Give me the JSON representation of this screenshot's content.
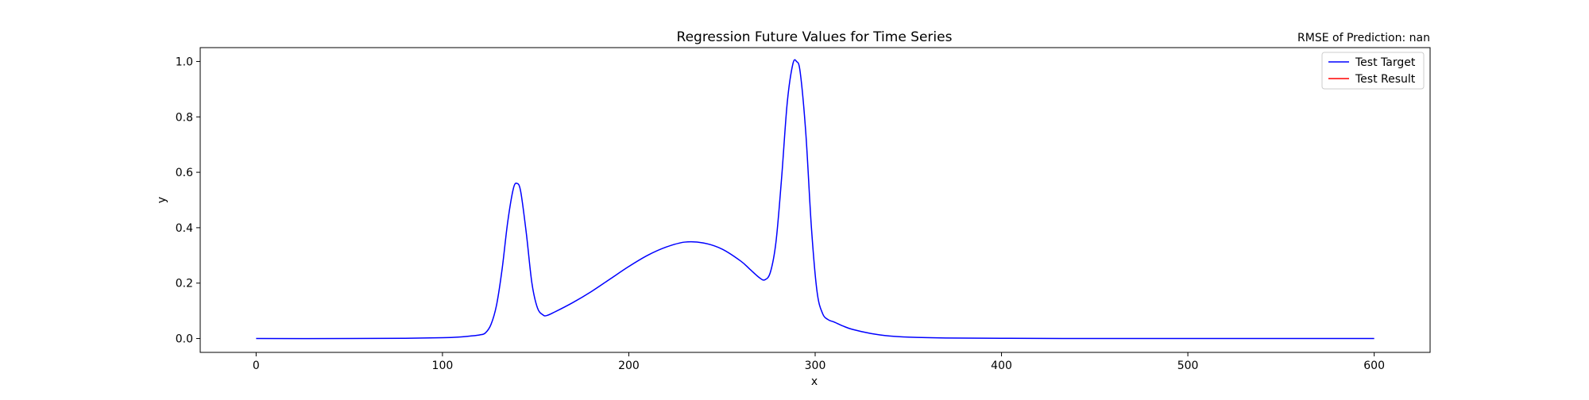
{
  "chart_data": {
    "type": "line",
    "title": "Regression Future Values for Time Series",
    "subtitle": "RMSE of Prediction: nan",
    "xlabel": "x",
    "ylabel": "y",
    "xlim": [
      -30,
      630
    ],
    "ylim": [
      -0.05,
      1.05
    ],
    "xticks": [
      0,
      100,
      200,
      300,
      400,
      500,
      600
    ],
    "yticks": [
      0.0,
      0.2,
      0.4,
      0.6,
      0.8,
      1.0
    ],
    "xtick_labels": [
      "0",
      "100",
      "200",
      "300",
      "400",
      "500",
      "600"
    ],
    "ytick_labels": [
      "0.0",
      "0.2",
      "0.4",
      "0.6",
      "0.8",
      "1.0"
    ],
    "grid": false,
    "legend_position": "top-right",
    "series": [
      {
        "name": "Test Target",
        "color": "#0000ff",
        "x": [
          0,
          50,
          80,
          100,
          110,
          115,
          120,
          123,
          126,
          129,
          132,
          135,
          138,
          140,
          142,
          145,
          148,
          151,
          154,
          156,
          160,
          170,
          180,
          190,
          200,
          210,
          220,
          230,
          240,
          250,
          260,
          265,
          270,
          273,
          276,
          279,
          282,
          285,
          288,
          290,
          292,
          295,
          298,
          301,
          304,
          307,
          310,
          315,
          320,
          330,
          340,
          350,
          370,
          400,
          450,
          500,
          550,
          600
        ],
        "values": [
          0.0,
          0.0,
          0.001,
          0.003,
          0.006,
          0.009,
          0.013,
          0.02,
          0.05,
          0.12,
          0.25,
          0.42,
          0.54,
          0.56,
          0.53,
          0.38,
          0.2,
          0.11,
          0.085,
          0.083,
          0.095,
          0.13,
          0.17,
          0.215,
          0.26,
          0.3,
          0.33,
          0.348,
          0.345,
          0.323,
          0.28,
          0.25,
          0.22,
          0.212,
          0.24,
          0.35,
          0.58,
          0.85,
          0.99,
          1.0,
          0.96,
          0.74,
          0.4,
          0.17,
          0.09,
          0.068,
          0.06,
          0.045,
          0.033,
          0.018,
          0.009,
          0.005,
          0.002,
          0.001,
          0.0,
          0.0,
          0.0,
          0.0
        ]
      },
      {
        "name": "Test Result",
        "color": "#ff0000",
        "x": [],
        "values": []
      }
    ]
  }
}
